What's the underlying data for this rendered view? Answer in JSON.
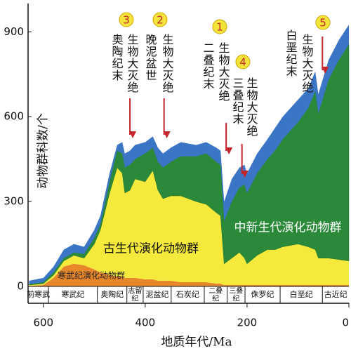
{
  "chart_data": {
    "type": "stacked_area",
    "xlabel": "地质年代/Ma",
    "ylabel": "动物群科数/个",
    "xlim": [
      630,
      0
    ],
    "ylim": [
      0,
      1000
    ],
    "xticks": [
      600,
      400,
      200,
      0
    ],
    "yticks": [
      0,
      300,
      600,
      900
    ],
    "x": [
      628,
      600,
      580,
      560,
      540,
      520,
      500,
      488,
      470,
      455,
      445,
      440,
      430,
      420,
      400,
      385,
      375,
      365,
      350,
      330,
      300,
      280,
      260,
      252,
      245,
      230,
      215,
      205,
      200,
      180,
      160,
      145,
      130,
      100,
      80,
      66,
      60,
      40,
      20,
      0
    ],
    "series": [
      {
        "name": "寒武纪演化动物群",
        "color": "#e8862a",
        "values": [
          2,
          5,
          30,
          70,
          80,
          75,
          60,
          50,
          40,
          35,
          35,
          30,
          30,
          30,
          25,
          25,
          20,
          20,
          20,
          15,
          15,
          15,
          10,
          10,
          5,
          5,
          5,
          5,
          5,
          5,
          5,
          5,
          5,
          5,
          5,
          5,
          5,
          5,
          5,
          5
        ]
      },
      {
        "name": "古生代演化动物群",
        "color": "#f5ea3b",
        "values": [
          3,
          5,
          10,
          20,
          30,
          25,
          90,
          150,
          290,
          385,
          365,
          300,
          310,
          350,
          345,
          385,
          320,
          290,
          300,
          305,
          285,
          275,
          250,
          240,
          75,
          95,
          115,
          95,
          75,
          105,
          125,
          125,
          135,
          145,
          135,
          125,
          95,
          95,
          90,
          85
        ]
      },
      {
        "name": "中新生代演化动物群",
        "color": "#2b8a3a",
        "values": [
          3,
          5,
          10,
          10,
          10,
          15,
          20,
          20,
          40,
          60,
          70,
          90,
          90,
          70,
          100,
          80,
          100,
          110,
          120,
          140,
          160,
          180,
          180,
          180,
          150,
          200,
          230,
          260,
          250,
          290,
          320,
          350,
          380,
          430,
          490,
          560,
          510,
          630,
          705,
          765
        ]
      },
      {
        "color": "#3b76c6",
        "values": [
          12,
          15,
          20,
          30,
          30,
          25,
          30,
          30,
          30,
          20,
          40,
          50,
          50,
          50,
          40,
          40,
          50,
          50,
          50,
          50,
          40,
          40,
          50,
          50,
          70,
          80,
          70,
          70,
          70,
          70,
          70,
          80,
          80,
          80,
          70,
          70,
          70,
          70,
          70,
          70
        ]
      }
    ],
    "periods": [
      {
        "name": "前寒武",
        "start": 630,
        "end": 590
      },
      {
        "name": "寒武纪",
        "start": 590,
        "end": 494
      },
      {
        "name": "奥陶纪",
        "start": 494,
        "end": 436
      },
      {
        "name": [
          "志留",
          "纪"
        ],
        "start": 436,
        "end": 404
      },
      {
        "name": "泥盆纪",
        "start": 404,
        "end": 349
      },
      {
        "name": "石炭纪",
        "start": 349,
        "end": 284
      },
      {
        "name": [
          "二叠",
          "纪"
        ],
        "start": 284,
        "end": 239
      },
      {
        "name": [
          "三叠",
          "纪"
        ],
        "start": 239,
        "end": 204
      },
      {
        "name": "侏罗纪",
        "start": 204,
        "end": 135
      },
      {
        "name": "白垩纪",
        "start": 135,
        "end": 52
      },
      {
        "name": "古近纪",
        "start": 52,
        "end": 0
      }
    ],
    "annotations": [
      {
        "number": "3",
        "lines": [
          "奥陶纪末",
          "生物大灭绝"
        ],
        "x": 430
      },
      {
        "number": "2",
        "lines": [
          "晚泥盆世",
          "生物大灭绝"
        ],
        "x": 363
      },
      {
        "number": "1",
        "lines": [
          "二叠纪末",
          "生物大灭绝"
        ],
        "x": 241
      },
      {
        "number": "4",
        "lines": [
          "三叠纪末",
          "生物大灭绝"
        ],
        "x": 210
      },
      {
        "number": "5",
        "lines": [
          "白垩纪末",
          "生物大灭绝"
        ],
        "x": 52
      }
    ]
  }
}
